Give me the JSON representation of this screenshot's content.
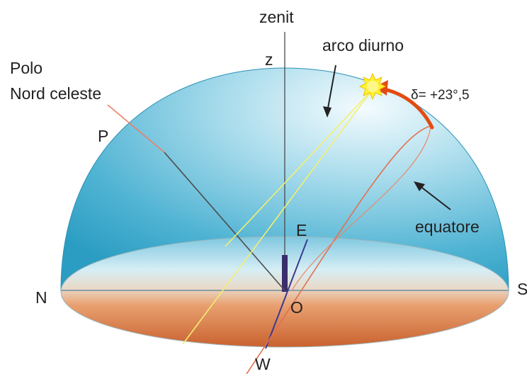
{
  "labels": {
    "zenit": "zenit",
    "z": "z",
    "arco_diurno": "arco diurno",
    "polo_line1": "Polo",
    "polo_line2": "Nord celeste",
    "p": "P",
    "delta": "δ= +23°,5",
    "equatore": "equatore",
    "e": "E",
    "n": "N",
    "s": "S",
    "o": "O",
    "w": "W"
  },
  "colors": {
    "dome_top": "#e9f6fb",
    "dome_mid": "#7fcbe0",
    "dome_edge": "#2fa0c4",
    "horizon_blue": "#bfe3ef",
    "ground_orange": "#d9804f",
    "ground_dark": "#c8643a",
    "diurnal_arc": "#f2ee7a",
    "equator": "#e0714f",
    "declination_arrow": "#e84a10",
    "sun": "#fff133",
    "axis": "#555555"
  },
  "icons": {
    "sun": "sun-icon"
  }
}
